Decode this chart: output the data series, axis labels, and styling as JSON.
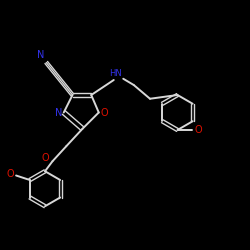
{
  "bg": "#000000",
  "bc": "#d8d8d8",
  "NC": "#3333ee",
  "OC": "#dd1100",
  "lw": 1.4,
  "ld": 1.0,
  "fs": 7.0,
  "fs2": 6.0,
  "xlim": [
    0,
    10
  ],
  "ylim": [
    0,
    10
  ]
}
